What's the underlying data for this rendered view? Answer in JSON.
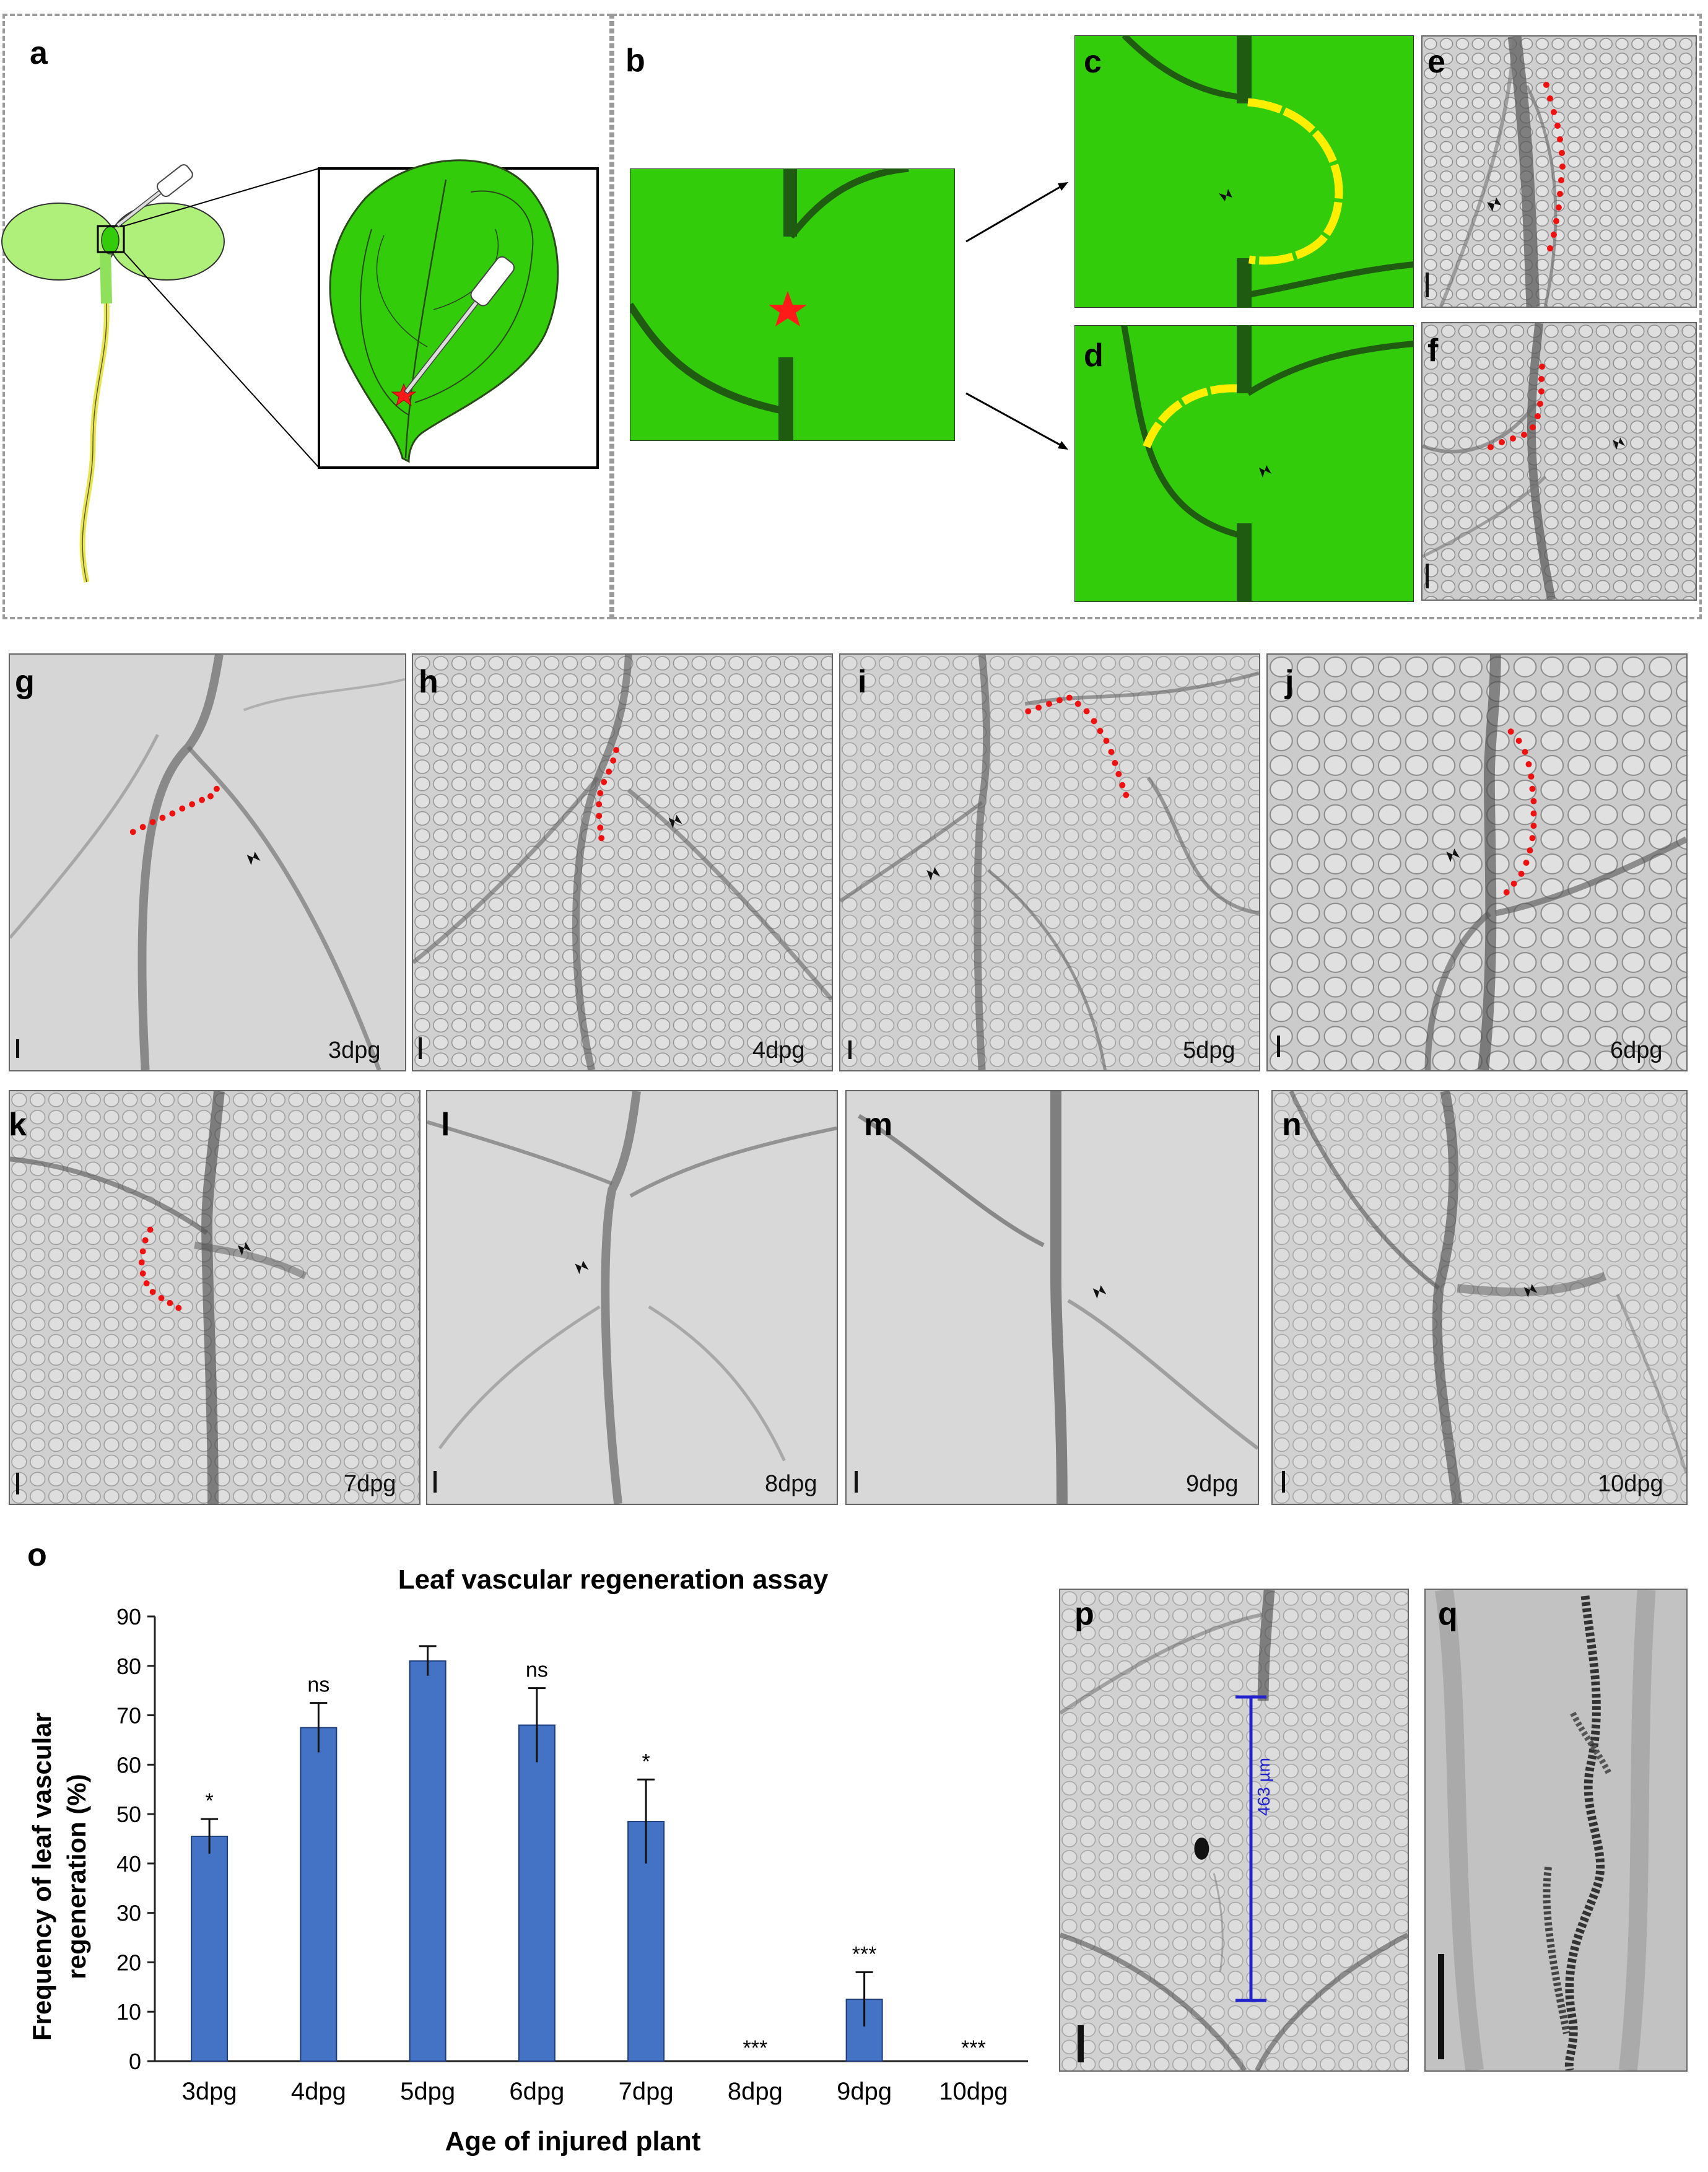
{
  "panels": {
    "a": "a",
    "b": "b",
    "c": "c",
    "d": "d",
    "e": "e",
    "f": "f",
    "g": "g",
    "h": "h",
    "i": "i",
    "j": "j",
    "k": "k",
    "l": "l",
    "m": "m",
    "n": "n",
    "o": "o",
    "p": "p",
    "q": "q"
  },
  "timepoints": [
    "3dpg",
    "4dpg",
    "5dpg",
    "6dpg",
    "7dpg",
    "8dpg",
    "9dpg",
    "10dpg"
  ],
  "measure_label": "463 µm",
  "colors": {
    "leaf_green": "#33cc0a",
    "vein_dark": "#1f5c12",
    "yellow_path": "#ffee00",
    "red_star": "#ff1a1a",
    "bar_blue": "#4472c4",
    "measure_blue": "#2222cc"
  },
  "chart_data": {
    "type": "bar",
    "title": "Leaf vascular regeneration assay",
    "xlabel": "Age of injured plant",
    "ylabel": "Frequency of leaf vascular regeneration (%)",
    "ylabel_line1": "Frequency of leaf vascular",
    "ylabel_line2": "regeneration (%)",
    "categories": [
      "3dpg",
      "4dpg",
      "5dpg",
      "6dpg",
      "7dpg",
      "8dpg",
      "9dpg",
      "10dpg"
    ],
    "values": [
      45.5,
      67.5,
      81,
      68,
      48.5,
      0,
      12.5,
      0
    ],
    "errors": [
      3.5,
      5,
      3,
      7.5,
      8.5,
      0,
      5.5,
      0
    ],
    "significance": [
      "*",
      "ns",
      "",
      "ns",
      "*",
      "***",
      "***",
      "***"
    ],
    "ylim": [
      0,
      90
    ],
    "yticks": [
      0,
      10,
      20,
      30,
      40,
      50,
      60,
      70,
      80,
      90
    ],
    "grid": false
  }
}
